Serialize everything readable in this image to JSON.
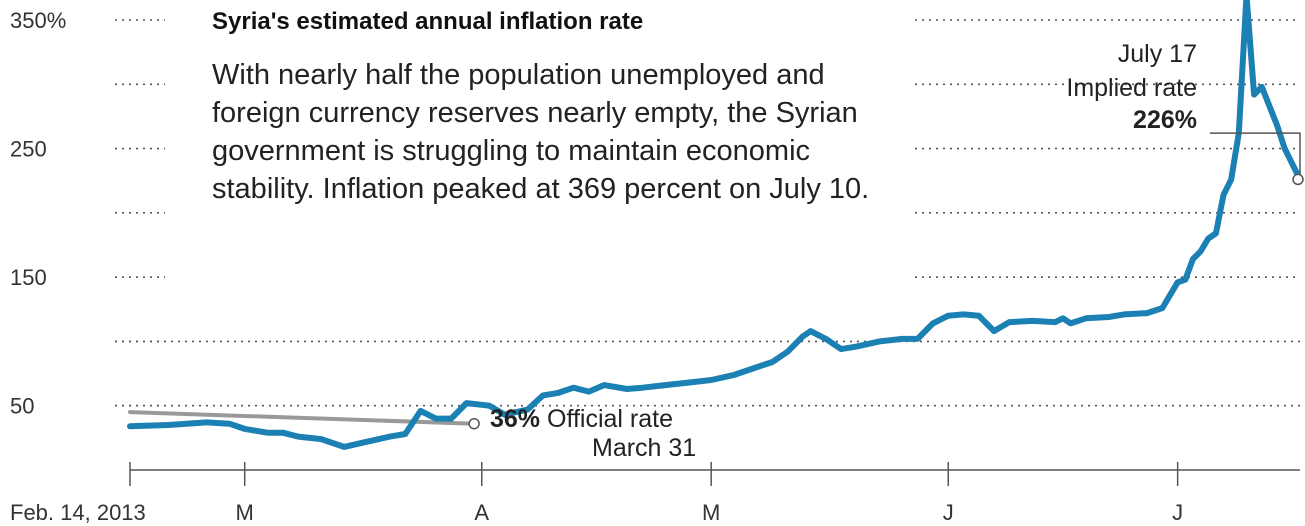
{
  "chart_data": {
    "type": "line",
    "title": "Syria's estimated annual inflation rate",
    "subtitle": "With nearly half the population unemployed and foreign currency reserves nearly empty, the Syrian government is struggling to maintain economic stability. Inflation peaked at 369 percent on July 10.",
    "ylim": [
      0,
      350
    ],
    "y_ticks": [
      {
        "value": 350,
        "label": "350%"
      },
      {
        "value": 300,
        "label": ""
      },
      {
        "value": 250,
        "label": "250"
      },
      {
        "value": 200,
        "label": ""
      },
      {
        "value": 150,
        "label": "150"
      },
      {
        "value": 100,
        "label": ""
      },
      {
        "value": 50,
        "label": "50"
      }
    ],
    "x_ticks": [
      {
        "date": "2013-02-14",
        "label": "Feb. 14, 2013"
      },
      {
        "date": "2013-03-01",
        "label": "M"
      },
      {
        "date": "2013-04-01",
        "label": "A"
      },
      {
        "date": "2013-05-01",
        "label": "M"
      },
      {
        "date": "2013-06-01",
        "label": "J"
      },
      {
        "date": "2013-07-01",
        "label": "J"
      }
    ],
    "x_range": [
      "2013-02-14",
      "2013-07-17"
    ],
    "series": [
      {
        "name": "Implied rate",
        "color": "#1b80b3",
        "points": [
          [
            "2013-02-14",
            34
          ],
          [
            "2013-02-19",
            35
          ],
          [
            "2013-02-24",
            37
          ],
          [
            "2013-02-27",
            36
          ],
          [
            "2013-03-01",
            32
          ],
          [
            "2013-03-04",
            29
          ],
          [
            "2013-03-06",
            29
          ],
          [
            "2013-03-08",
            26
          ],
          [
            "2013-03-11",
            24
          ],
          [
            "2013-03-14",
            18
          ],
          [
            "2013-03-17",
            22
          ],
          [
            "2013-03-20",
            26
          ],
          [
            "2013-03-22",
            28
          ],
          [
            "2013-03-24",
            46
          ],
          [
            "2013-03-26",
            40
          ],
          [
            "2013-03-28",
            40
          ],
          [
            "2013-03-30",
            52
          ],
          [
            "2013-04-02",
            50
          ],
          [
            "2013-04-04",
            43
          ],
          [
            "2013-04-07",
            47
          ],
          [
            "2013-04-09",
            58
          ],
          [
            "2013-04-11",
            60
          ],
          [
            "2013-04-13",
            64
          ],
          [
            "2013-04-15",
            61
          ],
          [
            "2013-04-17",
            66
          ],
          [
            "2013-04-20",
            63
          ],
          [
            "2013-04-22",
            64
          ],
          [
            "2013-04-25",
            66
          ],
          [
            "2013-04-28",
            68
          ],
          [
            "2013-05-01",
            70
          ],
          [
            "2013-05-04",
            74
          ],
          [
            "2013-05-07",
            80
          ],
          [
            "2013-05-09",
            84
          ],
          [
            "2013-05-11",
            92
          ],
          [
            "2013-05-13",
            104
          ],
          [
            "2013-05-14",
            108
          ],
          [
            "2013-05-16",
            102
          ],
          [
            "2013-05-18",
            94
          ],
          [
            "2013-05-20",
            96
          ],
          [
            "2013-05-23",
            100
          ],
          [
            "2013-05-26",
            102
          ],
          [
            "2013-05-28",
            102
          ],
          [
            "2013-05-30",
            114
          ],
          [
            "2013-06-01",
            120
          ],
          [
            "2013-06-03",
            121
          ],
          [
            "2013-06-05",
            120
          ],
          [
            "2013-06-07",
            108
          ],
          [
            "2013-06-09",
            115
          ],
          [
            "2013-06-12",
            116
          ],
          [
            "2013-06-15",
            115
          ],
          [
            "2013-06-16",
            118
          ],
          [
            "2013-06-17",
            114
          ],
          [
            "2013-06-19",
            118
          ],
          [
            "2013-06-22",
            119
          ],
          [
            "2013-06-24",
            121
          ],
          [
            "2013-06-27",
            122
          ],
          [
            "2013-06-29",
            126
          ],
          [
            "2013-07-01",
            146
          ],
          [
            "2013-07-02",
            148
          ],
          [
            "2013-07-03",
            164
          ],
          [
            "2013-07-04",
            170
          ],
          [
            "2013-07-05",
            180
          ],
          [
            "2013-07-06",
            184
          ],
          [
            "2013-07-07",
            214
          ],
          [
            "2013-07-08",
            226
          ],
          [
            "2013-07-09",
            262
          ],
          [
            "2013-07-10",
            369
          ],
          [
            "2013-07-11",
            292
          ],
          [
            "2013-07-12",
            298
          ],
          [
            "2013-07-14",
            268
          ],
          [
            "2013-07-15",
            250
          ],
          [
            "2013-07-17",
            226
          ]
        ]
      },
      {
        "name": "Official rate",
        "color": "#999999",
        "points": [
          [
            "2013-02-14",
            45
          ],
          [
            "2013-03-31",
            36
          ]
        ]
      }
    ],
    "annotations": {
      "official": {
        "value_label": "36%",
        "text": "Official rate",
        "date_text": "March 31"
      },
      "implied": {
        "date_text": "July 17",
        "text": "Implied rate",
        "value_label": "226%"
      }
    },
    "grid": "dotted horizontal"
  }
}
